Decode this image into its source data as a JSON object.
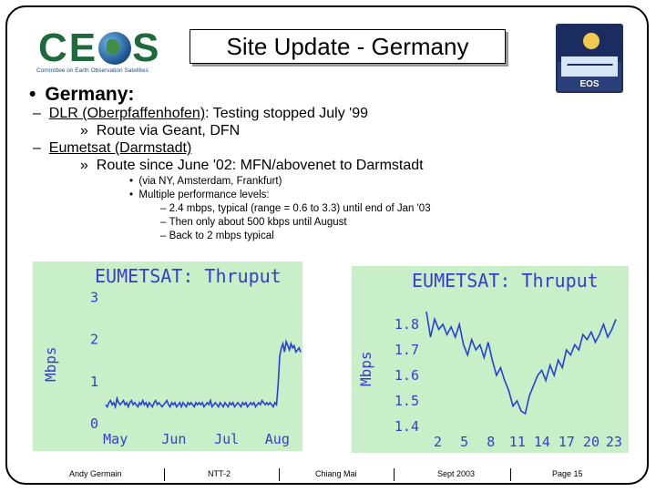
{
  "header": {
    "title": "Site Update - Germany",
    "ceos_logo": {
      "letters": [
        "C",
        "E",
        "S"
      ],
      "subtitle": "Committee on Earth Observation Satellites"
    },
    "eos_logo": {
      "label": "EOS"
    }
  },
  "content": {
    "heading": "Germany:",
    "items": [
      {
        "dash": "–",
        "link": "DLR (Oberpfaffenhofen)",
        "text": ": Testing stopped July '99"
      },
      {
        "dash": "»",
        "text": "Route via Geant, DFN"
      },
      {
        "dash": "–",
        "link": "Eumetsat (Darmstadt)",
        "text": ""
      },
      {
        "dash": "»",
        "text": "Route since June '02: MFN/abovenet to Darmstadt"
      }
    ],
    "sub_bullets": [
      "(via NY, Amsterdam, Frankfurt)",
      "Multiple performance levels:"
    ],
    "sub_sub_bullets": [
      "2.4 mbps, typical (range = 0.6 to 3.3) until end of Jan '03",
      "Then only about 500 kbps until August",
      "Back to 2 mbps typical"
    ]
  },
  "chart_data": [
    {
      "type": "line",
      "title": "EUMETSAT: Thruput",
      "ylabel": "Mbps",
      "xlabel": "",
      "x_ticks": [
        "May",
        "Jun",
        "Jul",
        "Aug"
      ],
      "y_ticks": [
        "0",
        "1",
        "2",
        "3"
      ],
      "ylim": [
        0,
        3.2
      ],
      "x": [
        0,
        1,
        2,
        3,
        4,
        5,
        6,
        7,
        8,
        9,
        10,
        11,
        12,
        13,
        14,
        15,
        16,
        17,
        18,
        19,
        20,
        21,
        22,
        23,
        24,
        25,
        26,
        27,
        28,
        29,
        30,
        31,
        32,
        33,
        34,
        35,
        36,
        37,
        38,
        39,
        40,
        41,
        42,
        43,
        44,
        45,
        46,
        47,
        48,
        49,
        50,
        51,
        52,
        53,
        54,
        55,
        56,
        57,
        58,
        59,
        60,
        61,
        62,
        63,
        64,
        65,
        66,
        67,
        68,
        69,
        70,
        71,
        72,
        73,
        74,
        75,
        76,
        77,
        78,
        79,
        80,
        81,
        82,
        83,
        84,
        85,
        86,
        87,
        88,
        89,
        90,
        91,
        92,
        93,
        94,
        95,
        96,
        97,
        98,
        99,
        100,
        101,
        102,
        103,
        104,
        105,
        106,
        107,
        108,
        109,
        110,
        111,
        112,
        113,
        114,
        115,
        116,
        117,
        118,
        119,
        120,
        121
      ],
      "series": [
        {
          "values": [
            0.45,
            0.4,
            0.5,
            0.55,
            0.45,
            0.5,
            0.4,
            0.6,
            0.5,
            0.45,
            0.5,
            0.55,
            0.45,
            0.5,
            0.4,
            0.5,
            0.55,
            0.45,
            0.5,
            0.45,
            0.4,
            0.5,
            0.45,
            0.55,
            0.45,
            0.5,
            0.4,
            0.5,
            0.45,
            0.4,
            0.5,
            0.55,
            0.45,
            0.5,
            0.45,
            0.4,
            0.45,
            0.5,
            0.55,
            0.45,
            0.4,
            0.5,
            0.45,
            0.5,
            0.4,
            0.45,
            0.5,
            0.4,
            0.5,
            0.45,
            0.4,
            0.5,
            0.45,
            0.5,
            0.45,
            0.4,
            0.5,
            0.45,
            0.5,
            0.45,
            0.5,
            0.4,
            0.45,
            0.5,
            0.45,
            0.55,
            0.4,
            0.45,
            0.5,
            0.45,
            0.4,
            0.5,
            0.45,
            0.4,
            0.5,
            0.45,
            0.4,
            0.5,
            0.45,
            0.5,
            0.4,
            0.45,
            0.5,
            0.45,
            0.4,
            0.5,
            0.45,
            0.5,
            0.4,
            0.45,
            0.5,
            0.45,
            0.5,
            0.4,
            0.45,
            0.5,
            0.45,
            0.55,
            0.5,
            0.45,
            0.5,
            0.45,
            0.5,
            0.45,
            0.4,
            0.5,
            0.45,
            0.9,
            1.6,
            1.8,
            1.9,
            1.7,
            1.95,
            1.85,
            1.75,
            1.9,
            1.8,
            1.85,
            1.7,
            1.75,
            1.8,
            1.7
          ]
        }
      ]
    },
    {
      "type": "line",
      "title": "EUMETSAT: Thruput",
      "ylabel": "Mbps",
      "xlabel": "",
      "x_ticks": [
        "2",
        "5",
        "8",
        "11",
        "14",
        "17",
        "20",
        "23"
      ],
      "y_ticks": [
        "1.4",
        "1.5",
        "1.6",
        "1.7",
        "1.8"
      ],
      "ylim": [
        1.4,
        1.85
      ],
      "x": [
        1,
        1.5,
        2,
        2.5,
        3,
        3.5,
        4,
        4.5,
        5,
        5.5,
        6,
        6.5,
        7,
        7.5,
        8,
        8.5,
        9,
        9.5,
        10,
        10.5,
        11,
        11.5,
        12,
        12.5,
        13,
        13.5,
        14,
        14.5,
        15,
        15.5,
        16,
        16.5,
        17,
        17.5,
        18,
        18.5,
        19,
        19.5,
        20,
        20.5,
        21,
        21.5,
        22,
        22.5,
        23,
        23.5,
        24
      ],
      "series": [
        {
          "values": [
            1.85,
            1.75,
            1.82,
            1.78,
            1.8,
            1.76,
            1.79,
            1.75,
            1.8,
            1.72,
            1.68,
            1.74,
            1.7,
            1.72,
            1.67,
            1.73,
            1.66,
            1.6,
            1.63,
            1.58,
            1.54,
            1.48,
            1.5,
            1.46,
            1.45,
            1.52,
            1.56,
            1.6,
            1.62,
            1.58,
            1.64,
            1.6,
            1.66,
            1.63,
            1.7,
            1.68,
            1.72,
            1.7,
            1.76,
            1.74,
            1.77,
            1.73,
            1.76,
            1.8,
            1.75,
            1.78,
            1.82
          ]
        }
      ]
    }
  ],
  "footer": {
    "author": "Andy Germain",
    "event": "NTT-2",
    "location": "Chiang Mai",
    "date": "Sept 2003",
    "page": "Page 15"
  }
}
